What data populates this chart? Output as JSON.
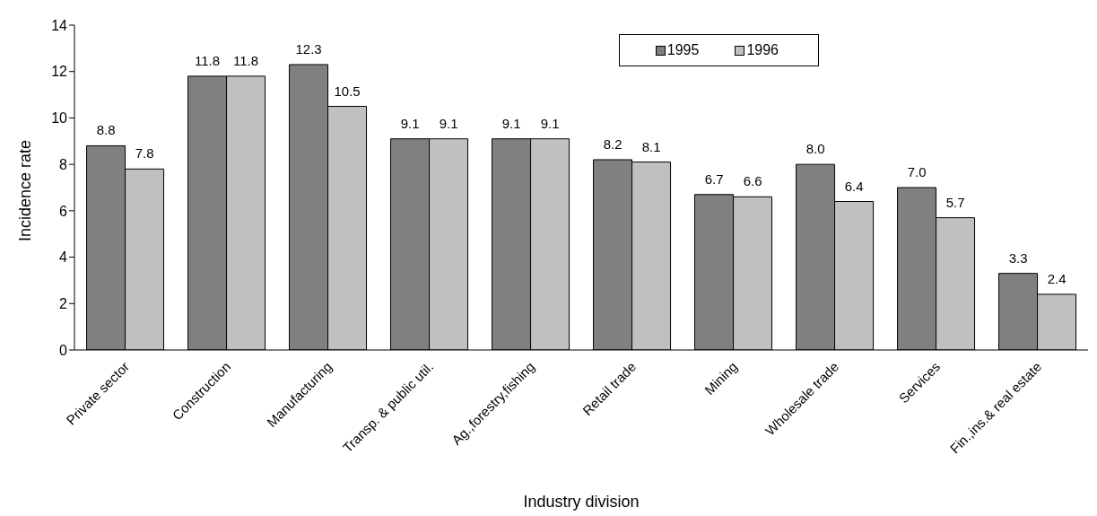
{
  "chart_data": {
    "type": "bar",
    "xlabel": "Industry division",
    "ylabel": "Incidence rate",
    "categories": [
      "Private sector",
      "Construction",
      "Manufacturing",
      "Transp. & public util.",
      "Ag.,forestry,fishing",
      "Retail trade",
      "Mining",
      "Wholesale trade",
      "Services",
      "Fin.,ins.& real estate"
    ],
    "series": [
      {
        "name": "1995",
        "color": "#808080",
        "values": [
          8.8,
          11.8,
          12.3,
          9.1,
          9.1,
          8.2,
          6.7,
          8.0,
          7.0,
          3.3
        ],
        "value_labels": [
          "8.8",
          "11.8",
          "12.3",
          "9.1",
          "9.1",
          "8.2",
          "6.7",
          "8.0",
          "7.0",
          "3.3"
        ]
      },
      {
        "name": "1996",
        "color": "#c0c0c0",
        "values": [
          7.8,
          11.8,
          10.5,
          9.1,
          9.1,
          8.1,
          6.6,
          6.4,
          5.7,
          2.4
        ],
        "value_labels": [
          "7.8",
          "11.8",
          "10.5",
          "9.1",
          "9.1",
          "8.1",
          "6.6",
          "6.4",
          "5.7",
          "2.4"
        ]
      }
    ],
    "ylim": [
      0,
      14
    ],
    "yticks": [
      0,
      2,
      4,
      6,
      8,
      10,
      12,
      14
    ],
    "grid": false,
    "legend": "top right"
  }
}
